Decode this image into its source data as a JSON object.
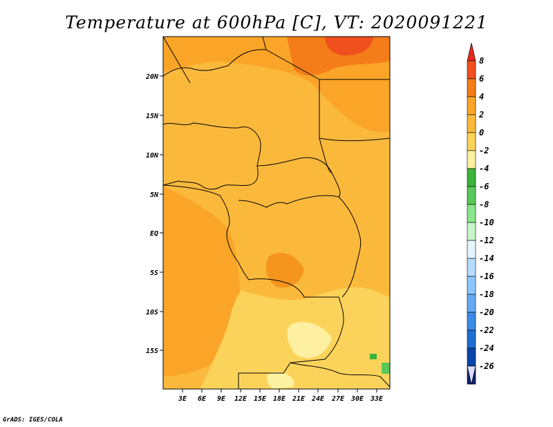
{
  "title": "Temperature at 600hPa [C], VT: 2020091221",
  "footer": "GrADS: IGES/COLA",
  "lat_labels": [
    "20N",
    "15N",
    "10N",
    "5N",
    "EQ",
    "5S",
    "10S",
    "15S"
  ],
  "lon_labels": [
    "3E",
    "6E",
    "9E",
    "12E",
    "15E",
    "18E",
    "21E",
    "24E",
    "27E",
    "30E",
    "33E"
  ],
  "colorbar": {
    "levels": [
      "8",
      "6",
      "4",
      "2",
      "0",
      "-2",
      "-4",
      "-6",
      "-8",
      "-10",
      "-12",
      "-14",
      "-16",
      "-18",
      "-20",
      "-22",
      "-24",
      "-26"
    ],
    "colors": [
      "#e8281e",
      "#f0501e",
      "#f57d19",
      "#faa528",
      "#fbb93c",
      "#fcd35a",
      "#fdf0a0",
      "#3cb43c",
      "#5ac85a",
      "#8ce68c",
      "#c8f5c8",
      "#e6f5ff",
      "#b4dcff",
      "#8cc8ff",
      "#64aaf5",
      "#3c8ce6",
      "#1e6ed2",
      "#0a46aa",
      "#08246e",
      "#dcdcff"
    ]
  }
}
